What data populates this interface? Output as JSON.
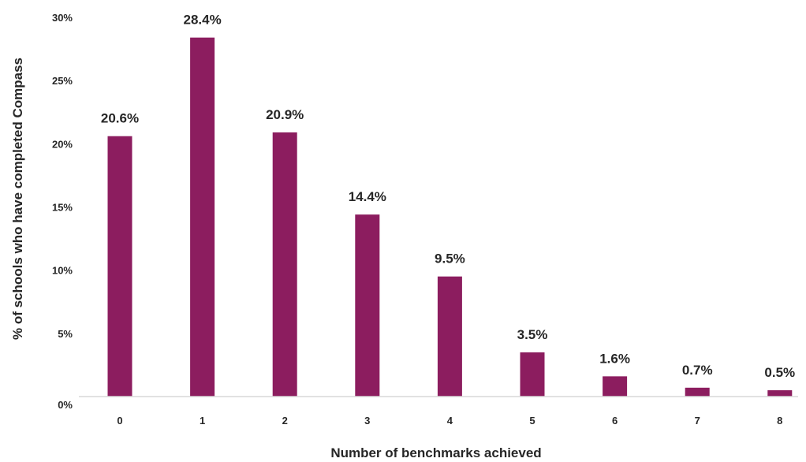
{
  "chart_data": {
    "type": "bar",
    "xlabel": "Number of benchmarks achieved",
    "ylabel": "% of schools who have completed Compass",
    "categories": [
      "0",
      "1",
      "2",
      "3",
      "4",
      "5",
      "6",
      "7",
      "8"
    ],
    "values": [
      20.6,
      28.4,
      20.9,
      14.4,
      9.5,
      3.5,
      1.6,
      0.7,
      0.5
    ],
    "data_labels": [
      "20.6%",
      "28.4%",
      "20.9%",
      "14.4%",
      "9.5%",
      "3.5%",
      "1.6%",
      "0.7%",
      "0.5%"
    ],
    "y_ticks": [
      0,
      5,
      10,
      15,
      20,
      25,
      30
    ],
    "y_tick_labels": [
      "0%",
      "5%",
      "10%",
      "15%",
      "20%",
      "25%",
      "30%"
    ],
    "ylim": [
      0,
      30
    ],
    "grid": false,
    "legend": "none",
    "bar_color": "#8c1d5f",
    "baseline_color": "#d9d9d9"
  }
}
